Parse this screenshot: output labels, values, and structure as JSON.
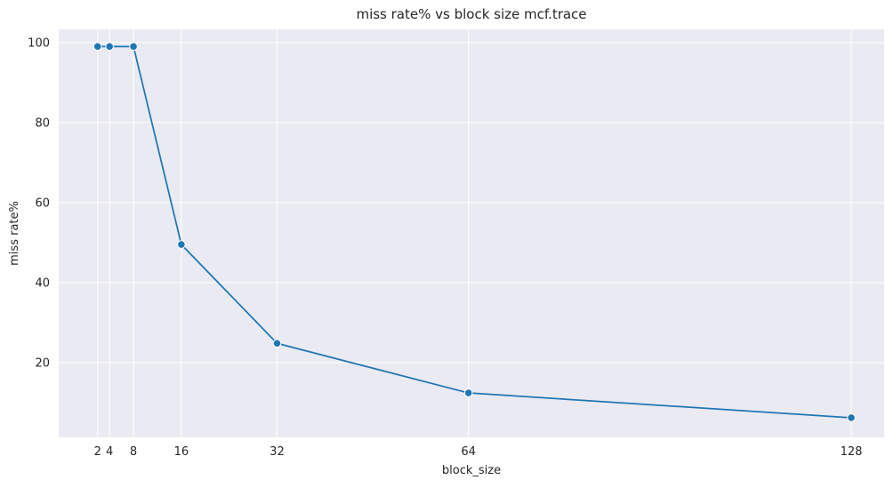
{
  "chart_data": {
    "type": "line",
    "title": "miss rate% vs block size mcf.trace",
    "xlabel": "block_size",
    "ylabel": "miss rate%",
    "x": [
      2,
      4,
      8,
      16,
      32,
      64,
      128
    ],
    "xticks": [
      "2",
      "4",
      "8",
      "16",
      "32",
      "64",
      "128"
    ],
    "xlim": [
      -4.5,
      133.5
    ],
    "yticks": [
      "20",
      "40",
      "60",
      "80",
      "100"
    ],
    "yticks_values": [
      20,
      40,
      60,
      80,
      100
    ],
    "ylim": [
      1.3,
      103.3
    ],
    "series": [
      {
        "values": [
          99.0,
          99.0,
          99.0,
          49.5,
          24.8,
          12.4,
          6.2
        ]
      }
    ],
    "grid": true,
    "colors": {
      "line": "#1f77b4",
      "background": "#eaeaf2",
      "grid": "#ffffff"
    }
  }
}
